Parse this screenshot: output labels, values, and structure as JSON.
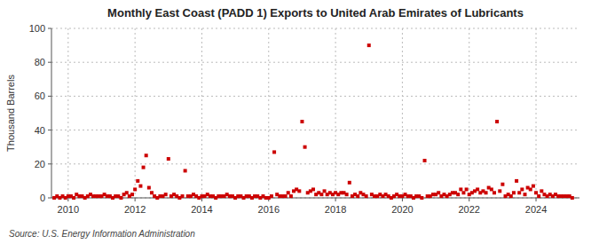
{
  "chart_data": {
    "type": "scatter",
    "title": "Monthly East Coast (PADD 1) Exports to United Arab Emirates of Lubricants",
    "ylabel": "Thousand Barrels",
    "source": "Source: U.S. Energy Information Administration",
    "color": "#cc0000",
    "marker": "square",
    "grid": true,
    "xlim": [
      2009.5,
      2025.3
    ],
    "xticks": [
      2010,
      2012,
      2014,
      2016,
      2018,
      2020,
      2022,
      2024
    ],
    "ylim": [
      0,
      100
    ],
    "yticks": [
      0,
      20,
      40,
      60,
      80,
      100
    ],
    "x": [
      2009.583,
      2009.667,
      2009.75,
      2009.833,
      2009.917,
      2010.0,
      2010.083,
      2010.167,
      2010.25,
      2010.333,
      2010.417,
      2010.5,
      2010.583,
      2010.667,
      2010.75,
      2010.833,
      2010.917,
      2011.0,
      2011.083,
      2011.167,
      2011.25,
      2011.333,
      2011.417,
      2011.5,
      2011.583,
      2011.667,
      2011.75,
      2011.833,
      2011.917,
      2012.0,
      2012.083,
      2012.167,
      2012.25,
      2012.333,
      2012.417,
      2012.5,
      2012.583,
      2012.667,
      2012.75,
      2012.833,
      2012.917,
      2013.0,
      2013.083,
      2013.167,
      2013.25,
      2013.333,
      2013.417,
      2013.5,
      2013.583,
      2013.667,
      2013.75,
      2013.833,
      2013.917,
      2014.0,
      2014.083,
      2014.167,
      2014.25,
      2014.333,
      2014.417,
      2014.5,
      2014.583,
      2014.667,
      2014.75,
      2014.833,
      2014.917,
      2015.0,
      2015.083,
      2015.167,
      2015.25,
      2015.333,
      2015.417,
      2015.5,
      2015.583,
      2015.667,
      2015.75,
      2015.833,
      2015.917,
      2016.0,
      2016.083,
      2016.167,
      2016.25,
      2016.333,
      2016.417,
      2016.5,
      2016.583,
      2016.667,
      2016.75,
      2016.833,
      2016.917,
      2017.0,
      2017.083,
      2017.167,
      2017.25,
      2017.333,
      2017.417,
      2017.5,
      2017.583,
      2017.667,
      2017.75,
      2017.833,
      2017.917,
      2018.0,
      2018.083,
      2018.167,
      2018.25,
      2018.333,
      2018.417,
      2018.5,
      2018.583,
      2018.667,
      2018.75,
      2018.833,
      2018.917,
      2019.0,
      2019.083,
      2019.167,
      2019.25,
      2019.333,
      2019.417,
      2019.5,
      2019.583,
      2019.667,
      2019.75,
      2019.833,
      2019.917,
      2020.0,
      2020.083,
      2020.167,
      2020.25,
      2020.333,
      2020.417,
      2020.5,
      2020.583,
      2020.667,
      2020.75,
      2020.833,
      2020.917,
      2021.0,
      2021.083,
      2021.167,
      2021.25,
      2021.333,
      2021.417,
      2021.5,
      2021.583,
      2021.667,
      2021.75,
      2021.833,
      2021.917,
      2022.0,
      2022.083,
      2022.167,
      2022.25,
      2022.333,
      2022.417,
      2022.5,
      2022.583,
      2022.667,
      2022.75,
      2022.833,
      2022.917,
      2023.0,
      2023.083,
      2023.167,
      2023.25,
      2023.333,
      2023.417,
      2023.5,
      2023.583,
      2023.667,
      2023.75,
      2023.833,
      2023.917,
      2024.0,
      2024.083,
      2024.167,
      2024.25,
      2024.333,
      2024.417,
      2024.5,
      2024.583,
      2024.667,
      2024.75,
      2024.833,
      2024.917,
      2025.0,
      2025.083
    ],
    "values": [
      0,
      1,
      0,
      1,
      0,
      1,
      1,
      0,
      2,
      1,
      1,
      0,
      1,
      2,
      1,
      1,
      1,
      1,
      2,
      1,
      1,
      0,
      1,
      1,
      0,
      2,
      3,
      1,
      2,
      5,
      10,
      7,
      18,
      25,
      6,
      3,
      1,
      0,
      1,
      1,
      2,
      23,
      1,
      2,
      1,
      0,
      1,
      16,
      1,
      1,
      2,
      1,
      0,
      1,
      1,
      2,
      1,
      1,
      0,
      1,
      1,
      1,
      2,
      1,
      1,
      0,
      1,
      1,
      0,
      1,
      1,
      0,
      1,
      1,
      0,
      1,
      0,
      0,
      1,
      27,
      2,
      1,
      1,
      1,
      3,
      1,
      4,
      5,
      4,
      45,
      30,
      3,
      4,
      5,
      2,
      3,
      2,
      4,
      2,
      3,
      2,
      3,
      2,
      3,
      3,
      2,
      9,
      1,
      2,
      1,
      3,
      2,
      1,
      90,
      2,
      1,
      1,
      2,
      1,
      2,
      1,
      0,
      1,
      2,
      1,
      1,
      2,
      1,
      1,
      0,
      1,
      1,
      0,
      22,
      1,
      1,
      2,
      2,
      3,
      1,
      2,
      1,
      2,
      3,
      3,
      2,
      5,
      3,
      5,
      2,
      3,
      4,
      5,
      3,
      4,
      3,
      6,
      5,
      3,
      45,
      4,
      8,
      1,
      2,
      1,
      3,
      10,
      3,
      5,
      2,
      6,
      5,
      7,
      3,
      1,
      4,
      2,
      1,
      2,
      1,
      2,
      1,
      1,
      1,
      1,
      1,
      0
    ]
  }
}
